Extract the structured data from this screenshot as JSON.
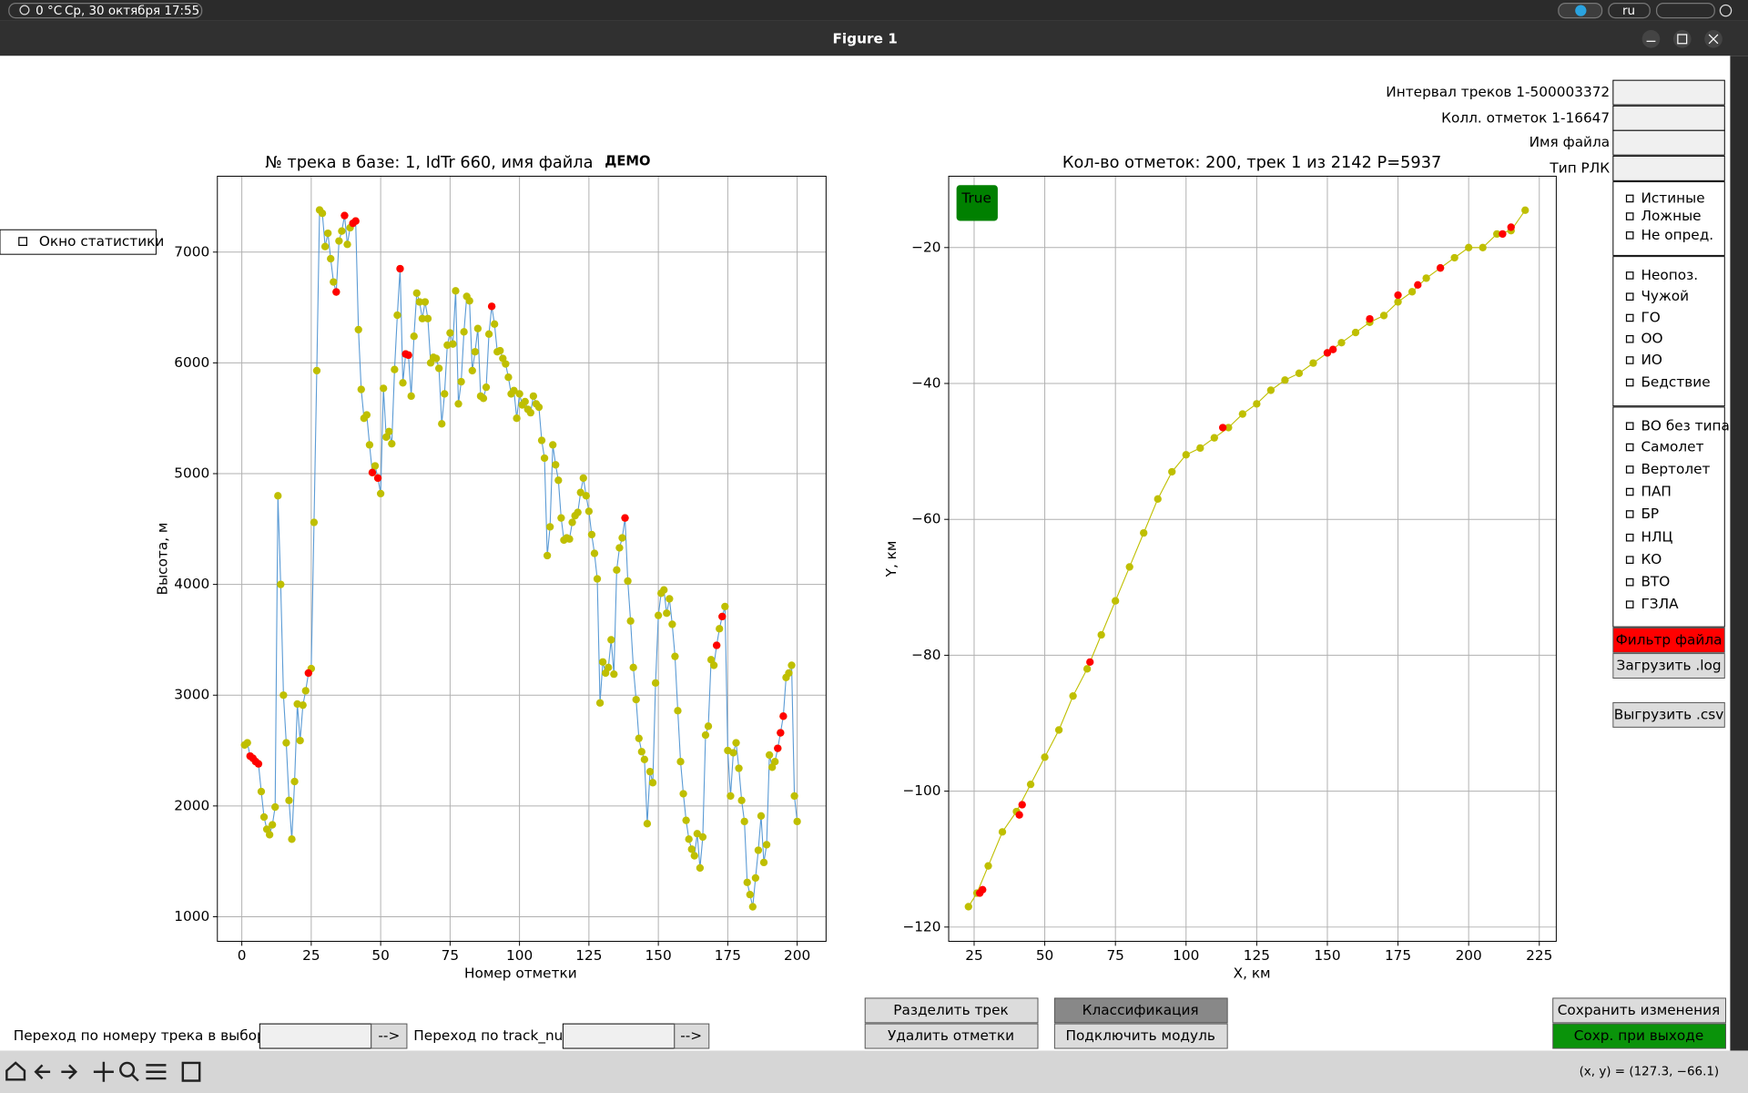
{
  "system_bar": {
    "weather": "0 °C",
    "datetime": "Ср, 30 октября 17:55",
    "language": "ru"
  },
  "window": {
    "title": "Figure 1"
  },
  "statistics_checkbox": "Окно статистики",
  "fields": [
    "Интервал треков 1-500003372",
    "Колл. отметок 1-16647",
    "Имя файла",
    "Тип РЛК"
  ],
  "checkbox_groups": [
    [
      "Истиные",
      "Ложные",
      "Не опред."
    ],
    [
      "Неопоз.",
      "Чужой",
      "ГО",
      "ОО",
      "ИО",
      "Бедствие"
    ],
    [
      "ВО без типа",
      "Самолет",
      "Вертолет",
      "ПАП",
      "БР",
      "НЛЦ",
      "КО",
      "ВТО",
      "ГЗЛА"
    ]
  ],
  "buttons": {
    "filter_file": "Фильтр файла",
    "load_log": "Загрузить .log",
    "export_csv": "Выгрузить .csv",
    "split_track": "Разделить трек",
    "delete_marks": "Удалить отметки",
    "classification": "Классификация",
    "connect_module": "Подключить модуль",
    "save_changes": "Сохранить изменения",
    "save_on_exit": "Сохр. при выходе"
  },
  "navigation": {
    "by_sample_label": "Переход по номеру трека в выборке",
    "by_track_num_label": "Переход по track_num",
    "go": "-->"
  },
  "status": "(x, y) = (127.3, −66.1)",
  "chart_data": [
    {
      "type": "line",
      "title": "№ трека в базе: 1, IdTr 660, имя файла",
      "annotation": "ДЕМО",
      "x_label": "Номер отметки",
      "y_label": "Высота, м",
      "xlim": [
        -8.8,
        210.4
      ],
      "ylim": [
        778,
        7685
      ],
      "xticks": [
        0,
        25,
        50,
        75,
        100,
        125,
        150,
        175,
        200
      ],
      "yticks": [
        1000,
        2000,
        3000,
        4000,
        5000,
        6000,
        7000
      ],
      "grid": true,
      "series": [
        {
          "color": "#bfbf00",
          "line_color": "#5b9bd5",
          "x": [
            1,
            2,
            3,
            4,
            5,
            6,
            7,
            8,
            9,
            10,
            11,
            12,
            13,
            14,
            15,
            16,
            17,
            18,
            19,
            20,
            21,
            22,
            23,
            24,
            25,
            26,
            27,
            28,
            29,
            30,
            31,
            32,
            33,
            34,
            35,
            36,
            37,
            38,
            39,
            40,
            41,
            42,
            43,
            44,
            45,
            46,
            47,
            48,
            49,
            50,
            51,
            52,
            53,
            54,
            55,
            56,
            57,
            58,
            59,
            60,
            61,
            62,
            63,
            64,
            65,
            66,
            67,
            68,
            69,
            70,
            71,
            72,
            73,
            74,
            75,
            76,
            77,
            78,
            79,
            80,
            81,
            82,
            83,
            84,
            85,
            86,
            87,
            88,
            89,
            90,
            91,
            92,
            93,
            94,
            95,
            96,
            97,
            98,
            99,
            100,
            101,
            102,
            103,
            104,
            105,
            106,
            107,
            108,
            109,
            110,
            111,
            112,
            113,
            114,
            115,
            116,
            117,
            118,
            119,
            120,
            121,
            122,
            123,
            124,
            125,
            126,
            127,
            128,
            129,
            130,
            131,
            132,
            133,
            134,
            135,
            136,
            137,
            138,
            139,
            140,
            141,
            142,
            143,
            144,
            145,
            146,
            147,
            148,
            149,
            150,
            151,
            152,
            153,
            154,
            155,
            156,
            157,
            158,
            159,
            160,
            161,
            162,
            163,
            164,
            165,
            166,
            167,
            168,
            169,
            170,
            171,
            172,
            173,
            174,
            175,
            176,
            177,
            178,
            179,
            180,
            181,
            182,
            183,
            184,
            185,
            186,
            187,
            188,
            189,
            190,
            191,
            192,
            193,
            194,
            195,
            196,
            197,
            198,
            199,
            200
          ],
          "values": [
            2550,
            2570,
            2450,
            2430,
            2400,
            2380,
            2130,
            1900,
            1790,
            1740,
            1830,
            1990,
            4800,
            4000,
            3000,
            2570,
            2050,
            1700,
            2220,
            2920,
            2590,
            2910,
            3040,
            3200,
            3240,
            4560,
            5930,
            7380,
            7350,
            7050,
            7170,
            6940,
            6730,
            6640,
            7100,
            7190,
            7330,
            7070,
            7220,
            7260,
            7280,
            6300,
            5760,
            5500,
            5530,
            5260,
            5010,
            5070,
            4960,
            4820,
            5770,
            5330,
            5380,
            5270,
            5940,
            6430,
            6850,
            5820,
            6080,
            6070,
            5700,
            6240,
            6630,
            6550,
            6400,
            6550,
            6400,
            6000,
            6050,
            6040,
            5950,
            5450,
            5720,
            6160,
            6270,
            6170,
            6650,
            5630,
            5830,
            6280,
            6600,
            6560,
            5930,
            6100,
            6310,
            5700,
            5680,
            5780,
            6260,
            6510,
            6350,
            6100,
            6110,
            6040,
            5990,
            5870,
            5720,
            5750,
            5500,
            5720,
            5620,
            5650,
            5580,
            5550,
            5700,
            5630,
            5600,
            5300,
            5140,
            4260,
            4520,
            5260,
            5080,
            4940,
            4600,
            4400,
            4420,
            4410,
            4560,
            4620,
            4650,
            4830,
            4960,
            4800,
            4660,
            4450,
            4280,
            4050,
            2930,
            3300,
            3200,
            3250,
            3500,
            3190,
            4130,
            4330,
            4420,
            4600,
            4030,
            3670,
            3250,
            2960,
            2610,
            2490,
            2420,
            1840,
            2310,
            2210,
            3110,
            3720,
            3920,
            3950,
            3740,
            3870,
            3640,
            3350,
            2860,
            2400,
            2110,
            1870,
            1700,
            1610,
            1550,
            1750,
            1440,
            1720,
            2640,
            2720,
            3320,
            3270,
            3450,
            3600,
            3710,
            3800,
            2500,
            2090,
            2480,
            2570,
            2340,
            2050,
            1860,
            1310,
            1200,
            1090,
            1350,
            1600,
            1910,
            1490,
            1650,
            2460,
            2350,
            2400,
            2520,
            2660,
            2810,
            3160,
            3200,
            3270,
            2090,
            1860
          ]
        },
        {
          "color": "#ff0000",
          "x": [
            3,
            4,
            5,
            6,
            24,
            34,
            37,
            40,
            41,
            47,
            49,
            57,
            59,
            60,
            90,
            138,
            171,
            173,
            193,
            194,
            195
          ],
          "values": [
            2450,
            2430,
            2400,
            2380,
            3200,
            6640,
            7330,
            7260,
            7280,
            5010,
            4960,
            6850,
            6080,
            6070,
            6510,
            4600,
            3450,
            3710,
            2520,
            2660,
            2810
          ]
        }
      ]
    },
    {
      "type": "scatter",
      "title": "Кол-во отметок: 200, трек 1 из 2142 P=5937",
      "annotation": "True",
      "annotation_color": "#008000",
      "x_label": "X, км",
      "y_label": "Y, км",
      "xlim": [
        16,
        231
      ],
      "ylim": [
        -122.1,
        -9.5
      ],
      "xticks": [
        25,
        50,
        75,
        100,
        125,
        150,
        175,
        200,
        225
      ],
      "yticks": [
        {
          "value": -120,
          "label": "−120"
        },
        {
          "value": -100,
          "label": "−100"
        },
        {
          "value": -80,
          "label": "−80"
        },
        {
          "value": -60,
          "label": "−60"
        },
        {
          "value": -40,
          "label": "−40"
        },
        {
          "value": -20,
          "label": "−20"
        }
      ],
      "grid": true,
      "series": [
        {
          "color": "#bfbf00",
          "line_color": "#bfbf00",
          "x": [
            23,
            26,
            30,
            35,
            40,
            45,
            50,
            55,
            60,
            65,
            70,
            75,
            80,
            85,
            90,
            95,
            100,
            105,
            110,
            115,
            120,
            125,
            130,
            135,
            140,
            145,
            150,
            155,
            160,
            165,
            170,
            175,
            180,
            185,
            190,
            195,
            200,
            205,
            210,
            215,
            220
          ],
          "values": [
            -117,
            -115,
            -111,
            -106,
            -103,
            -99,
            -95,
            -91,
            -86,
            -82,
            -77,
            -72,
            -67,
            -62,
            -57,
            -53,
            -50.5,
            -49.5,
            -48,
            -46.5,
            -44.5,
            -43,
            -41,
            -39.5,
            -38.5,
            -37,
            -35.5,
            -34,
            -32.5,
            -31,
            -30,
            -28,
            -26.5,
            -24.5,
            -23,
            -21.5,
            -20,
            -20,
            -18,
            -17.5,
            -14.5
          ]
        },
        {
          "color": "#ff0000",
          "x": [
            27,
            28,
            41,
            42,
            66,
            113,
            150,
            152,
            165,
            175,
            182,
            190,
            212,
            215
          ],
          "values": [
            -115,
            -114.5,
            -103.5,
            -102,
            -81,
            -46.5,
            -35.5,
            -35,
            -30.5,
            -27,
            -25.5,
            -23,
            -18,
            -17
          ]
        }
      ]
    }
  ]
}
